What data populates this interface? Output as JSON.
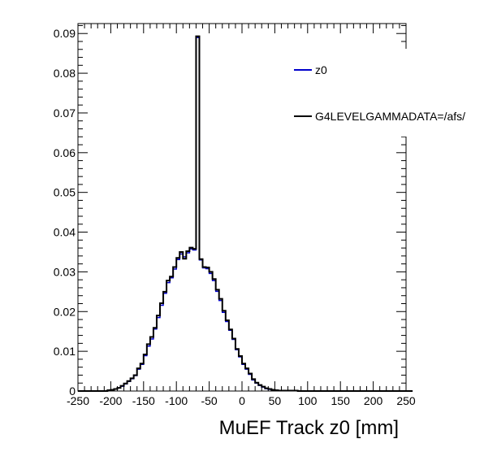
{
  "chart_data": {
    "type": "histogram",
    "xlabel": "MuEF Track z0 [mm]",
    "ylabel": "",
    "xlim": [
      -250,
      250
    ],
    "ylim": [
      0,
      0.0925
    ],
    "x_ticks": [
      "-250",
      "-200",
      "-150",
      "-100",
      "-50",
      "0",
      "50",
      "100",
      "150",
      "200",
      "250"
    ],
    "y_ticks": [
      "0",
      "0.01",
      "0.02",
      "0.03",
      "0.04",
      "0.05",
      "0.06",
      "0.07",
      "0.08",
      "0.09"
    ],
    "bin_edges_start": -250,
    "bin_width": 5,
    "legend_position": "top-right",
    "series": [
      {
        "name": "z0",
        "color": "#0000cc",
        "values": [
          0,
          0,
          0,
          0,
          0,
          0,
          0,
          0,
          0,
          0.0002,
          0.0003,
          0.0005,
          0.0008,
          0.0012,
          0.0018,
          0.0024,
          0.0031,
          0.0039,
          0.0055,
          0.0067,
          0.0089,
          0.0113,
          0.0131,
          0.0156,
          0.0185,
          0.0216,
          0.0246,
          0.0273,
          0.0285,
          0.0307,
          0.0331,
          0.0345,
          0.0338,
          0.0348,
          0.0358,
          0.0355,
          0.089,
          0.033,
          0.031,
          0.0308,
          0.0296,
          0.0278,
          0.0251,
          0.0228,
          0.0198,
          0.0175,
          0.0153,
          0.013,
          0.0104,
          0.0086,
          0.0067,
          0.0055,
          0.0042,
          0.0028,
          0.002,
          0.0014,
          0.001,
          0.0006,
          0.0004,
          0.0003,
          0.0002,
          0.0001,
          0.0001,
          0.0001,
          0.0001,
          0.0001,
          0.0001,
          0,
          0,
          0,
          0,
          0,
          0,
          0,
          0,
          0,
          0,
          0,
          0,
          0,
          0,
          0,
          0,
          0,
          0,
          0,
          0,
          0,
          0,
          0,
          0,
          0,
          0,
          0,
          0,
          0,
          0,
          0,
          0,
          0,
          0,
          0
        ]
      },
      {
        "name": "G4LEVELGAMMADATA=/afs/",
        "color": "#000000",
        "values": [
          0,
          0,
          0,
          0,
          0,
          0,
          0,
          0,
          0,
          0.0002,
          0.0003,
          0.0005,
          0.0008,
          0.0013,
          0.0019,
          0.0025,
          0.0032,
          0.004,
          0.0057,
          0.0069,
          0.0092,
          0.0118,
          0.0136,
          0.0159,
          0.019,
          0.0221,
          0.025,
          0.0278,
          0.0288,
          0.0312,
          0.0335,
          0.035,
          0.0333,
          0.0352,
          0.0361,
          0.0358,
          0.0893,
          0.0332,
          0.0312,
          0.0311,
          0.03,
          0.0282,
          0.0255,
          0.0232,
          0.0202,
          0.0178,
          0.0155,
          0.0132,
          0.0106,
          0.0088,
          0.0069,
          0.0057,
          0.0044,
          0.003,
          0.0021,
          0.0015,
          0.0011,
          0.0007,
          0.0005,
          0.0003,
          0.0002,
          0.0001,
          0.0001,
          0.0001,
          0.0001,
          0.0001,
          0.0001,
          0,
          0,
          0,
          0,
          0,
          0,
          0,
          0,
          0,
          0,
          0,
          0,
          0,
          0,
          0,
          0,
          0,
          0,
          0,
          0,
          0,
          0,
          0,
          0,
          0,
          0,
          0,
          0,
          0,
          0,
          0,
          0,
          0,
          0,
          0
        ]
      }
    ]
  }
}
